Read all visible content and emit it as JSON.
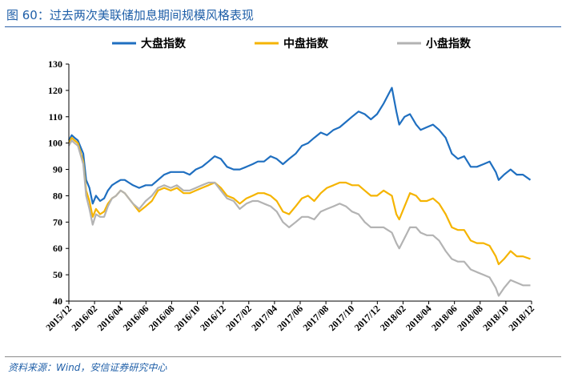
{
  "figure": {
    "title": "图 60：过去两次美联储加息期间规模风格表现",
    "source": "资料来源：Wind，安信证券研究中心"
  },
  "chart_data": {
    "type": "line",
    "title": "",
    "xlabel": "",
    "ylabel": "",
    "ylim": [
      40,
      130
    ],
    "yticks": [
      40,
      50,
      60,
      70,
      80,
      90,
      100,
      110,
      120,
      130
    ],
    "grid": false,
    "legend_position": "top",
    "xlim": [
      "2015-12-01",
      "2018-12-31"
    ],
    "xticks": [
      "2015/12",
      "2016/02",
      "2016/04",
      "2016/06",
      "2016/08",
      "2016/10",
      "2016/12",
      "2017/02",
      "2017/04",
      "2017/06",
      "2017/08",
      "2017/10",
      "2017/12",
      "2018/02",
      "2018/04",
      "2018/06",
      "2018/08",
      "2018/10",
      "2018/12"
    ],
    "series": [
      {
        "name": "大盘指数",
        "color": "#1f6fc0",
        "points": [
          [
            "2015-12-01",
            101
          ],
          [
            "2015-12-08",
            103
          ],
          [
            "2015-12-15",
            102
          ],
          [
            "2015-12-23",
            101
          ],
          [
            "2016-01-05",
            96
          ],
          [
            "2016-01-12",
            86
          ],
          [
            "2016-01-20",
            83
          ],
          [
            "2016-01-28",
            77
          ],
          [
            "2016-02-05",
            80
          ],
          [
            "2016-02-15",
            78
          ],
          [
            "2016-02-25",
            79
          ],
          [
            "2016-03-05",
            82
          ],
          [
            "2016-03-15",
            84
          ],
          [
            "2016-03-25",
            85
          ],
          [
            "2016-04-05",
            86
          ],
          [
            "2016-04-15",
            86
          ],
          [
            "2016-04-25",
            85
          ],
          [
            "2016-05-05",
            84
          ],
          [
            "2016-05-20",
            83
          ],
          [
            "2016-06-05",
            84
          ],
          [
            "2016-06-20",
            84
          ],
          [
            "2016-07-05",
            86
          ],
          [
            "2016-07-20",
            88
          ],
          [
            "2016-08-05",
            89
          ],
          [
            "2016-08-20",
            89
          ],
          [
            "2016-09-05",
            89
          ],
          [
            "2016-09-20",
            88
          ],
          [
            "2016-10-05",
            90
          ],
          [
            "2016-10-20",
            91
          ],
          [
            "2016-11-05",
            93
          ],
          [
            "2016-11-20",
            95
          ],
          [
            "2016-12-05",
            94
          ],
          [
            "2016-12-20",
            91
          ],
          [
            "2017-01-05",
            90
          ],
          [
            "2017-01-20",
            90
          ],
          [
            "2017-02-05",
            91
          ],
          [
            "2017-02-20",
            92
          ],
          [
            "2017-03-05",
            93
          ],
          [
            "2017-03-20",
            93
          ],
          [
            "2017-04-05",
            95
          ],
          [
            "2017-04-20",
            94
          ],
          [
            "2017-05-05",
            92
          ],
          [
            "2017-05-20",
            94
          ],
          [
            "2017-06-05",
            96
          ],
          [
            "2017-06-20",
            99
          ],
          [
            "2017-07-05",
            100
          ],
          [
            "2017-07-20",
            102
          ],
          [
            "2017-08-05",
            104
          ],
          [
            "2017-08-20",
            103
          ],
          [
            "2017-09-05",
            105
          ],
          [
            "2017-09-20",
            106
          ],
          [
            "2017-10-05",
            108
          ],
          [
            "2017-10-20",
            110
          ],
          [
            "2017-11-05",
            112
          ],
          [
            "2017-11-20",
            111
          ],
          [
            "2017-12-05",
            109
          ],
          [
            "2017-12-20",
            111
          ],
          [
            "2018-01-05",
            115
          ],
          [
            "2018-01-15",
            118
          ],
          [
            "2018-01-25",
            121
          ],
          [
            "2018-02-05",
            112
          ],
          [
            "2018-02-12",
            107
          ],
          [
            "2018-02-25",
            110
          ],
          [
            "2018-03-10",
            111
          ],
          [
            "2018-03-25",
            107
          ],
          [
            "2018-04-05",
            105
          ],
          [
            "2018-04-20",
            106
          ],
          [
            "2018-05-05",
            107
          ],
          [
            "2018-05-20",
            105
          ],
          [
            "2018-06-05",
            102
          ],
          [
            "2018-06-20",
            96
          ],
          [
            "2018-07-05",
            94
          ],
          [
            "2018-07-20",
            95
          ],
          [
            "2018-08-05",
            91
          ],
          [
            "2018-08-20",
            91
          ],
          [
            "2018-09-05",
            92
          ],
          [
            "2018-09-20",
            93
          ],
          [
            "2018-10-05",
            89
          ],
          [
            "2018-10-12",
            86
          ],
          [
            "2018-10-25",
            88
          ],
          [
            "2018-11-10",
            90
          ],
          [
            "2018-11-25",
            88
          ],
          [
            "2018-12-10",
            88
          ],
          [
            "2018-12-28",
            86
          ]
        ]
      },
      {
        "name": "中盘指数",
        "color": "#f5b400",
        "points": [
          [
            "2015-12-01",
            100
          ],
          [
            "2015-12-08",
            102
          ],
          [
            "2015-12-15",
            101
          ],
          [
            "2015-12-23",
            100
          ],
          [
            "2016-01-05",
            93
          ],
          [
            "2016-01-12",
            82
          ],
          [
            "2016-01-20",
            78
          ],
          [
            "2016-01-28",
            72
          ],
          [
            "2016-02-05",
            75
          ],
          [
            "2016-02-15",
            73
          ],
          [
            "2016-02-25",
            74
          ],
          [
            "2016-03-05",
            77
          ],
          [
            "2016-03-15",
            79
          ],
          [
            "2016-03-25",
            80
          ],
          [
            "2016-04-05",
            82
          ],
          [
            "2016-04-15",
            81
          ],
          [
            "2016-04-25",
            79
          ],
          [
            "2016-05-05",
            77
          ],
          [
            "2016-05-20",
            74
          ],
          [
            "2016-06-05",
            76
          ],
          [
            "2016-06-20",
            78
          ],
          [
            "2016-07-05",
            82
          ],
          [
            "2016-07-20",
            83
          ],
          [
            "2016-08-05",
            82
          ],
          [
            "2016-08-20",
            83
          ],
          [
            "2016-09-05",
            81
          ],
          [
            "2016-09-20",
            81
          ],
          [
            "2016-10-05",
            82
          ],
          [
            "2016-10-20",
            83
          ],
          [
            "2016-11-05",
            84
          ],
          [
            "2016-11-20",
            85
          ],
          [
            "2016-12-05",
            83
          ],
          [
            "2016-12-20",
            80
          ],
          [
            "2017-01-05",
            79
          ],
          [
            "2017-01-20",
            77
          ],
          [
            "2017-02-05",
            79
          ],
          [
            "2017-02-20",
            80
          ],
          [
            "2017-03-05",
            81
          ],
          [
            "2017-03-20",
            81
          ],
          [
            "2017-04-05",
            80
          ],
          [
            "2017-04-20",
            78
          ],
          [
            "2017-05-05",
            74
          ],
          [
            "2017-05-20",
            73
          ],
          [
            "2017-06-05",
            76
          ],
          [
            "2017-06-20",
            79
          ],
          [
            "2017-07-05",
            80
          ],
          [
            "2017-07-20",
            78
          ],
          [
            "2017-08-05",
            81
          ],
          [
            "2017-08-20",
            83
          ],
          [
            "2017-09-05",
            84
          ],
          [
            "2017-09-20",
            85
          ],
          [
            "2017-10-05",
            85
          ],
          [
            "2017-10-20",
            84
          ],
          [
            "2017-11-05",
            84
          ],
          [
            "2017-11-20",
            82
          ],
          [
            "2017-12-05",
            80
          ],
          [
            "2017-12-20",
            80
          ],
          [
            "2018-01-05",
            82
          ],
          [
            "2018-01-15",
            81
          ],
          [
            "2018-01-25",
            80
          ],
          [
            "2018-02-05",
            73
          ],
          [
            "2018-02-12",
            71
          ],
          [
            "2018-02-25",
            76
          ],
          [
            "2018-03-10",
            81
          ],
          [
            "2018-03-25",
            80
          ],
          [
            "2018-04-05",
            78
          ],
          [
            "2018-04-20",
            78
          ],
          [
            "2018-05-05",
            79
          ],
          [
            "2018-05-20",
            77
          ],
          [
            "2018-06-05",
            73
          ],
          [
            "2018-06-20",
            68
          ],
          [
            "2018-07-05",
            67
          ],
          [
            "2018-07-20",
            67
          ],
          [
            "2018-08-05",
            63
          ],
          [
            "2018-08-20",
            62
          ],
          [
            "2018-09-05",
            62
          ],
          [
            "2018-09-20",
            61
          ],
          [
            "2018-10-05",
            57
          ],
          [
            "2018-10-12",
            54
          ],
          [
            "2018-10-25",
            56
          ],
          [
            "2018-11-10",
            59
          ],
          [
            "2018-11-25",
            57
          ],
          [
            "2018-12-10",
            57
          ],
          [
            "2018-12-28",
            56
          ]
        ]
      },
      {
        "name": "小盘指数",
        "color": "#b3b3b3",
        "points": [
          [
            "2015-12-01",
            99
          ],
          [
            "2015-12-08",
            101
          ],
          [
            "2015-12-15",
            100
          ],
          [
            "2015-12-23",
            99
          ],
          [
            "2016-01-05",
            92
          ],
          [
            "2016-01-12",
            80
          ],
          [
            "2016-01-20",
            75
          ],
          [
            "2016-01-28",
            69
          ],
          [
            "2016-02-05",
            73
          ],
          [
            "2016-02-15",
            72
          ],
          [
            "2016-02-25",
            72
          ],
          [
            "2016-03-05",
            76
          ],
          [
            "2016-03-15",
            79
          ],
          [
            "2016-03-25",
            80
          ],
          [
            "2016-04-05",
            82
          ],
          [
            "2016-04-15",
            81
          ],
          [
            "2016-04-25",
            79
          ],
          [
            "2016-05-05",
            77
          ],
          [
            "2016-05-20",
            75
          ],
          [
            "2016-06-05",
            78
          ],
          [
            "2016-06-20",
            80
          ],
          [
            "2016-07-05",
            83
          ],
          [
            "2016-07-20",
            84
          ],
          [
            "2016-08-05",
            83
          ],
          [
            "2016-08-20",
            84
          ],
          [
            "2016-09-05",
            82
          ],
          [
            "2016-09-20",
            82
          ],
          [
            "2016-10-05",
            83
          ],
          [
            "2016-10-20",
            84
          ],
          [
            "2016-11-05",
            85
          ],
          [
            "2016-11-20",
            85
          ],
          [
            "2016-12-05",
            82
          ],
          [
            "2016-12-20",
            79
          ],
          [
            "2017-01-05",
            78
          ],
          [
            "2017-01-20",
            75
          ],
          [
            "2017-02-05",
            77
          ],
          [
            "2017-02-20",
            78
          ],
          [
            "2017-03-05",
            78
          ],
          [
            "2017-03-20",
            77
          ],
          [
            "2017-04-05",
            76
          ],
          [
            "2017-04-20",
            74
          ],
          [
            "2017-05-05",
            70
          ],
          [
            "2017-05-20",
            68
          ],
          [
            "2017-06-05",
            70
          ],
          [
            "2017-06-20",
            72
          ],
          [
            "2017-07-05",
            72
          ],
          [
            "2017-07-20",
            71
          ],
          [
            "2017-08-05",
            74
          ],
          [
            "2017-08-20",
            75
          ],
          [
            "2017-09-05",
            76
          ],
          [
            "2017-09-20",
            77
          ],
          [
            "2017-10-05",
            76
          ],
          [
            "2017-10-20",
            74
          ],
          [
            "2017-11-05",
            73
          ],
          [
            "2017-11-20",
            70
          ],
          [
            "2017-12-05",
            68
          ],
          [
            "2017-12-20",
            68
          ],
          [
            "2018-01-05",
            68
          ],
          [
            "2018-01-15",
            67
          ],
          [
            "2018-01-25",
            66
          ],
          [
            "2018-02-05",
            62
          ],
          [
            "2018-02-12",
            60
          ],
          [
            "2018-02-25",
            64
          ],
          [
            "2018-03-10",
            68
          ],
          [
            "2018-03-25",
            68
          ],
          [
            "2018-04-05",
            66
          ],
          [
            "2018-04-20",
            65
          ],
          [
            "2018-05-05",
            65
          ],
          [
            "2018-05-20",
            63
          ],
          [
            "2018-06-05",
            59
          ],
          [
            "2018-06-20",
            56
          ],
          [
            "2018-07-05",
            55
          ],
          [
            "2018-07-20",
            55
          ],
          [
            "2018-08-05",
            52
          ],
          [
            "2018-08-20",
            51
          ],
          [
            "2018-09-05",
            50
          ],
          [
            "2018-09-20",
            49
          ],
          [
            "2018-10-05",
            45
          ],
          [
            "2018-10-12",
            42
          ],
          [
            "2018-10-25",
            45
          ],
          [
            "2018-11-10",
            48
          ],
          [
            "2018-11-25",
            47
          ],
          [
            "2018-12-10",
            46
          ],
          [
            "2018-12-28",
            46
          ]
        ]
      }
    ]
  }
}
